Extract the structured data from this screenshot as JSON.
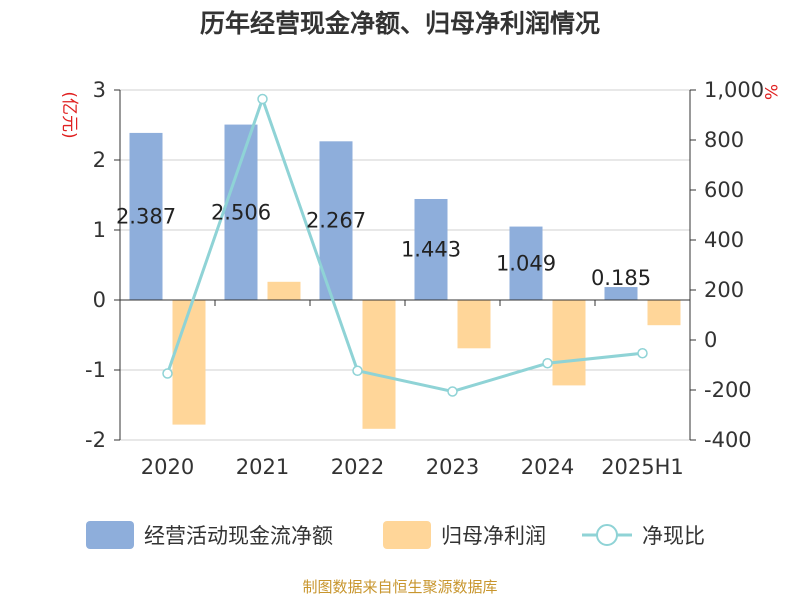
{
  "chart_data": {
    "type": "bar",
    "title": "历年经营现金净额、归母净利润情况",
    "categories": [
      "2020",
      "2021",
      "2022",
      "2023",
      "2024",
      "2025H1"
    ],
    "left_axis": {
      "unit": "(亿元)",
      "ylim": [
        -2,
        3
      ],
      "ticks": [
        "3",
        "2",
        "1",
        "0",
        "-1",
        "-2"
      ],
      "tick_values": [
        3,
        2,
        1,
        0,
        -1,
        -2
      ]
    },
    "right_axis": {
      "unit": "%",
      "ylim": [
        -400,
        1000
      ],
      "ticks": [
        "1,000",
        "800",
        "600",
        "400",
        "200",
        "0",
        "-200",
        "-400"
      ],
      "tick_values": [
        1000,
        800,
        600,
        400,
        200,
        0,
        -200,
        -400
      ]
    },
    "series": [
      {
        "name": "经营活动现金流净额",
        "type": "bar",
        "axis": "left",
        "color": "#8eaedb",
        "values": [
          2.387,
          2.506,
          2.267,
          1.443,
          1.049,
          0.185
        ],
        "labels": [
          "2.387",
          "2.506",
          "2.267",
          "1.443",
          "1.049",
          "0.185"
        ]
      },
      {
        "name": "归母净利润",
        "type": "bar",
        "axis": "left",
        "color": "#ffd699",
        "values": [
          -1.78,
          0.26,
          -1.84,
          -0.69,
          -1.22,
          -0.36
        ]
      },
      {
        "name": "净现比",
        "type": "line",
        "axis": "right",
        "color": "#8fd3d6",
        "values": [
          -134,
          964,
          -123,
          -206,
          -93,
          -53
        ]
      }
    ],
    "legend_position": "bottom",
    "grid": true,
    "source": "制图数据来自恒生聚源数据库"
  }
}
